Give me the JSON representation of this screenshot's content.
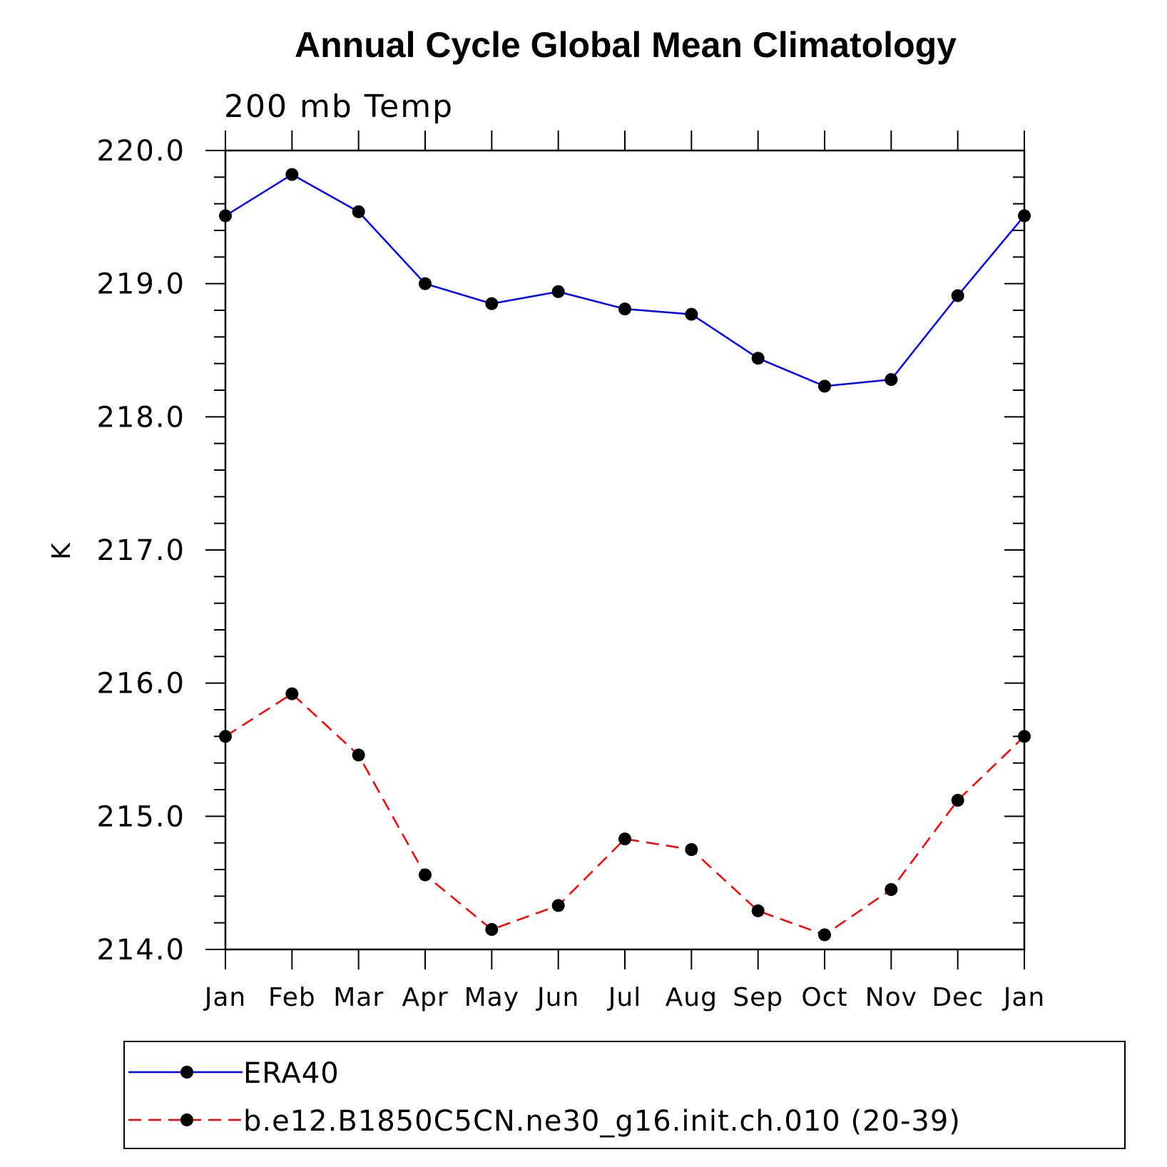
{
  "chart_data": {
    "type": "line",
    "title": "Annual Cycle Global Mean Climatology",
    "subtitle": "200 mb Temp",
    "xlabel": "",
    "ylabel": "K",
    "categories": [
      "Jan",
      "Feb",
      "Mar",
      "Apr",
      "May",
      "Jun",
      "Jul",
      "Aug",
      "Sep",
      "Oct",
      "Nov",
      "Dec",
      "Jan"
    ],
    "ylim": [
      214.0,
      220.0
    ],
    "yticks": [
      "214.0",
      "215.0",
      "216.0",
      "217.0",
      "218.0",
      "219.0",
      "220.0"
    ],
    "grid": false,
    "legend_position": "bottom",
    "series": [
      {
        "name": "ERA40",
        "color": "#0000ff",
        "dash": "solid",
        "marker": "filled-circle",
        "values": [
          219.51,
          219.82,
          219.54,
          219.0,
          218.85,
          218.94,
          218.81,
          218.77,
          218.44,
          218.23,
          218.28,
          218.91,
          219.51
        ]
      },
      {
        "name": "b.e12.B1850C5CN.ne30_g16.init.ch.010 (20-39)",
        "color": "#ff0000",
        "dash": "dashed",
        "marker": "filled-circle",
        "values": [
          215.6,
          215.92,
          215.46,
          214.56,
          214.15,
          214.33,
          214.83,
          214.75,
          214.29,
          214.11,
          214.45,
          215.12,
          215.6
        ]
      }
    ]
  }
}
